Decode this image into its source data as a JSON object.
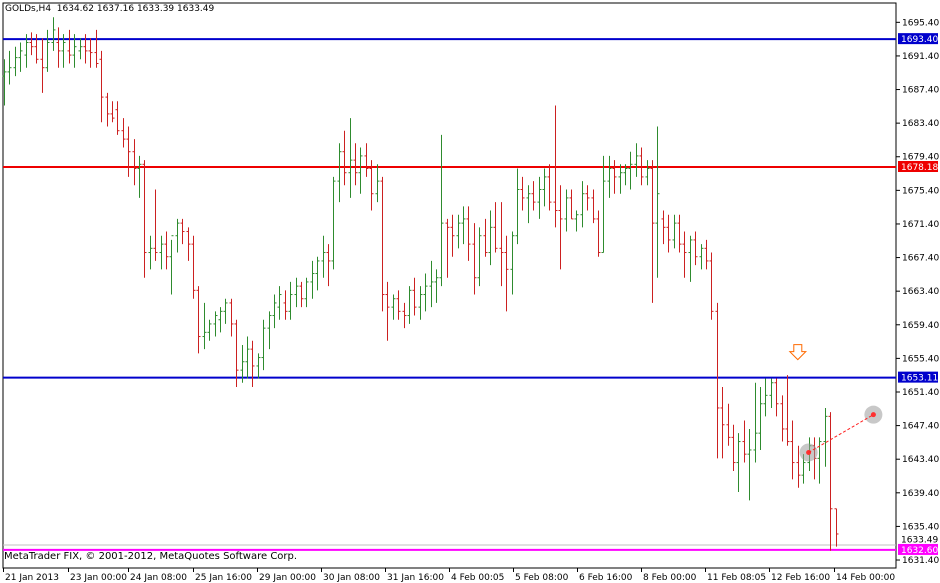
{
  "header": {
    "symbol": "GOLDs,H4",
    "ohlc": "1634.62 1637.16 1633.39 1633.49"
  },
  "footer": {
    "copyright": "MetaTrader FIX, © 2001-2012, MetaQuotes Software Corp."
  },
  "colors": {
    "bull": "#2e8b2e",
    "bear": "#cc2020",
    "blue_line": "#0000cc",
    "red_line": "#ee0000",
    "magenta_line": "#ff00ff",
    "arrow": "#ff6a00",
    "axis": "#000000",
    "grid_bg": "#ffffff"
  },
  "chart_data": {
    "type": "bar",
    "subtype": "ohlc",
    "ylim": [
      1630.45,
      1697.7
    ],
    "y_ticks": [
      "1695.40",
      "1691.40",
      "1687.40",
      "1683.40",
      "1679.40",
      "1675.40",
      "1671.40",
      "1667.40",
      "1663.40",
      "1659.40",
      "1655.40",
      "1651.40",
      "1647.40",
      "1643.40",
      "1639.40",
      "1635.40",
      "1631.40"
    ],
    "x_ticks": [
      "21 Jan 2013",
      "23 Jan 00:00",
      "24 Jan 08:00",
      "25 Jan 16:00",
      "29 Jan 00:00",
      "30 Jan 08:00",
      "31 Jan 16:00",
      "4 Feb 00:05",
      "5 Feb 08:00",
      "6 Feb 16:00",
      "8 Feb 00:00",
      "11 Feb 08:05",
      "12 Feb 16:00",
      "14 Feb 00:00"
    ],
    "horizontal_levels": [
      {
        "value": 1693.4,
        "label": "1693.40",
        "color": "#0000cc"
      },
      {
        "value": 1678.18,
        "label": "1678.18",
        "color": "#ee0000"
      },
      {
        "value": 1653.11,
        "label": "1653.11",
        "color": "#0000cc"
      },
      {
        "value": 1632.6,
        "label": "1632.60",
        "color": "#ff00ff"
      }
    ],
    "current_price": {
      "value": 1633.49,
      "label": "1633.49"
    },
    "bars": [
      [
        1689.0,
        1691.0,
        1685.5,
        1689.5
      ],
      [
        1689.5,
        1692.0,
        1688.0,
        1690.0
      ],
      [
        1690.0,
        1692.5,
        1689.0,
        1691.2
      ],
      [
        1691.2,
        1693.0,
        1689.5,
        1692.0
      ],
      [
        1691.5,
        1694.0,
        1690.0,
        1693.0
      ],
      [
        1693.0,
        1694.2,
        1691.5,
        1692.5
      ],
      [
        1692.5,
        1694.0,
        1690.5,
        1691.0
      ],
      [
        1691.0,
        1693.5,
        1687.0,
        1690.0
      ],
      [
        1690.0,
        1694.5,
        1689.5,
        1693.0
      ],
      [
        1693.0,
        1696.0,
        1692.0,
        1694.5
      ],
      [
        1693.0,
        1694.8,
        1690.0,
        1692.0
      ],
      [
        1692.0,
        1694.0,
        1690.0,
        1693.0
      ],
      [
        1692.0,
        1694.5,
        1690.5,
        1691.5
      ],
      [
        1691.5,
        1694.0,
        1690.0,
        1692.5
      ],
      [
        1692.0,
        1693.5,
        1691.0,
        1692.5
      ],
      [
        1692.5,
        1694.0,
        1690.5,
        1692.0
      ],
      [
        1692.0,
        1693.5,
        1690.0,
        1691.8
      ],
      [
        1691.8,
        1694.5,
        1690.0,
        1690.5
      ],
      [
        1691.0,
        1692.0,
        1683.5,
        1686.5
      ],
      [
        1686.5,
        1687.0,
        1683.0,
        1684.5
      ],
      [
        1684.5,
        1686.0,
        1683.5,
        1684.0
      ],
      [
        1685.0,
        1686.0,
        1682.0,
        1682.5
      ],
      [
        1682.5,
        1684.0,
        1680.5,
        1681.5
      ],
      [
        1681.5,
        1683.0,
        1677.0,
        1680.0
      ],
      [
        1680.0,
        1681.5,
        1676.0,
        1678.0
      ],
      [
        1678.0,
        1679.5,
        1674.5,
        1678.5
      ],
      [
        1678.5,
        1679.0,
        1665.0,
        1668.0
      ],
      [
        1668.0,
        1670.0,
        1666.0,
        1668.5
      ],
      [
        1668.5,
        1675.5,
        1667.0,
        1668.0
      ],
      [
        1668.0,
        1670.0,
        1666.0,
        1669.0
      ],
      [
        1669.0,
        1670.5,
        1666.0,
        1667.5
      ],
      [
        1667.5,
        1669.5,
        1663.0,
        1670.0
      ],
      [
        1670.0,
        1672.0,
        1668.0,
        1671.5
      ],
      [
        1671.5,
        1672.0,
        1669.0,
        1670.5
      ],
      [
        1670.5,
        1671.0,
        1667.0,
        1669.0
      ],
      [
        1669.0,
        1670.0,
        1662.5,
        1663.5
      ],
      [
        1663.5,
        1664.0,
        1656.0,
        1658.0
      ],
      [
        1658.0,
        1662.0,
        1656.5,
        1658.5
      ],
      [
        1658.5,
        1660.0,
        1657.5,
        1659.5
      ],
      [
        1659.5,
        1661.0,
        1658.0,
        1660.5
      ],
      [
        1660.0,
        1661.5,
        1658.5,
        1661.0
      ],
      [
        1661.0,
        1662.5,
        1659.5,
        1662.0
      ],
      [
        1662.0,
        1662.5,
        1658.0,
        1659.5
      ],
      [
        1659.5,
        1660.0,
        1652.0,
        1654.0
      ],
      [
        1654.0,
        1657.0,
        1652.5,
        1655.0
      ],
      [
        1655.0,
        1658.0,
        1653.0,
        1656.5
      ],
      [
        1656.5,
        1657.5,
        1652.0,
        1654.5
      ],
      [
        1654.5,
        1656.0,
        1653.0,
        1655.5
      ],
      [
        1655.5,
        1660.0,
        1654.0,
        1659.0
      ],
      [
        1659.0,
        1661.0,
        1656.5,
        1660.5
      ],
      [
        1660.5,
        1663.0,
        1659.0,
        1662.0
      ],
      [
        1661.5,
        1664.0,
        1660.0,
        1663.0
      ],
      [
        1662.0,
        1663.5,
        1660.0,
        1661.0
      ],
      [
        1661.0,
        1664.5,
        1660.0,
        1663.0
      ],
      [
        1663.0,
        1665.0,
        1661.5,
        1664.0
      ],
      [
        1664.0,
        1664.5,
        1661.5,
        1662.5
      ],
      [
        1662.5,
        1665.0,
        1661.5,
        1664.5
      ],
      [
        1664.5,
        1667.0,
        1662.5,
        1665.5
      ],
      [
        1665.5,
        1667.5,
        1663.5,
        1667.0
      ],
      [
        1667.0,
        1670.0,
        1665.0,
        1668.0
      ],
      [
        1668.0,
        1669.0,
        1664.0,
        1667.0
      ],
      [
        1667.0,
        1677.0,
        1666.0,
        1676.5
      ],
      [
        1676.5,
        1681.0,
        1674.0,
        1680.0
      ],
      [
        1680.0,
        1682.5,
        1676.0,
        1677.5
      ],
      [
        1677.5,
        1684.0,
        1674.5,
        1679.0
      ],
      [
        1679.0,
        1681.0,
        1676.0,
        1677.5
      ],
      [
        1677.5,
        1680.5,
        1675.0,
        1679.5
      ],
      [
        1679.5,
        1681.0,
        1677.0,
        1678.0
      ],
      [
        1678.0,
        1679.0,
        1673.0,
        1675.0
      ],
      [
        1675.0,
        1678.5,
        1674.0,
        1676.5
      ],
      [
        1676.5,
        1677.0,
        1661.0,
        1663.0
      ],
      [
        1663.0,
        1664.5,
        1657.5,
        1661.5
      ],
      [
        1661.5,
        1663.0,
        1660.0,
        1662.5
      ],
      [
        1662.5,
        1663.5,
        1660.0,
        1661.0
      ],
      [
        1661.0,
        1662.0,
        1659.0,
        1660.5
      ],
      [
        1660.5,
        1664.0,
        1659.5,
        1663.5
      ],
      [
        1663.5,
        1665.0,
        1660.5,
        1661.5
      ],
      [
        1661.5,
        1664.0,
        1660.0,
        1663.0
      ],
      [
        1663.0,
        1665.5,
        1661.0,
        1664.0
      ],
      [
        1664.0,
        1667.0,
        1661.5,
        1664.5
      ],
      [
        1664.5,
        1666.0,
        1662.0,
        1665.0
      ],
      [
        1665.0,
        1682.0,
        1664.0,
        1671.5
      ],
      [
        1671.5,
        1672.0,
        1665.0,
        1671.0
      ],
      [
        1671.0,
        1672.5,
        1667.5,
        1670.0
      ],
      [
        1670.0,
        1672.5,
        1668.5,
        1671.5
      ],
      [
        1671.5,
        1673.5,
        1669.0,
        1672.0
      ],
      [
        1672.0,
        1673.5,
        1667.0,
        1669.0
      ],
      [
        1669.0,
        1671.5,
        1663.0,
        1665.0
      ],
      [
        1665.0,
        1671.0,
        1664.0,
        1670.0
      ],
      [
        1670.0,
        1672.0,
        1667.5,
        1668.0
      ],
      [
        1668.0,
        1673.0,
        1666.5,
        1671.0
      ],
      [
        1671.0,
        1674.0,
        1668.0,
        1668.5
      ],
      [
        1668.5,
        1674.0,
        1664.0,
        1668.0
      ],
      [
        1668.0,
        1670.0,
        1661.0,
        1666.0
      ],
      [
        1666.0,
        1670.5,
        1663.0,
        1670.0
      ],
      [
        1670.0,
        1678.0,
        1669.0,
        1675.5
      ],
      [
        1675.5,
        1677.0,
        1673.0,
        1674.5
      ],
      [
        1674.5,
        1676.0,
        1671.5,
        1675.0
      ],
      [
        1675.0,
        1676.5,
        1673.0,
        1674.0
      ],
      [
        1674.0,
        1677.0,
        1672.0,
        1675.5
      ],
      [
        1675.5,
        1678.0,
        1673.5,
        1677.0
      ],
      [
        1677.0,
        1678.5,
        1673.0,
        1674.0
      ],
      [
        1674.0,
        1685.5,
        1671.0,
        1673.0
      ],
      [
        1673.0,
        1676.0,
        1666.0,
        1672.0
      ],
      [
        1672.0,
        1675.5,
        1670.5,
        1674.5
      ],
      [
        1674.5,
        1675.5,
        1672.0,
        1672.0
      ],
      [
        1672.0,
        1673.0,
        1670.5,
        1672.5
      ],
      [
        1672.5,
        1676.5,
        1671.0,
        1675.0
      ],
      [
        1675.0,
        1676.0,
        1673.0,
        1674.5
      ],
      [
        1674.5,
        1675.5,
        1671.5,
        1672.0
      ],
      [
        1672.0,
        1673.0,
        1667.5,
        1668.0
      ],
      [
        1668.0,
        1679.5,
        1668.0,
        1676.5
      ],
      [
        1676.5,
        1679.5,
        1674.5,
        1678.0
      ],
      [
        1678.0,
        1679.0,
        1675.0,
        1677.0
      ],
      [
        1677.0,
        1678.5,
        1675.0,
        1677.5
      ],
      [
        1677.5,
        1678.5,
        1676.0,
        1678.0
      ],
      [
        1678.0,
        1680.0,
        1675.5,
        1678.5
      ],
      [
        1678.5,
        1681.0,
        1677.0,
        1679.5
      ],
      [
        1679.5,
        1680.5,
        1676.0,
        1677.0
      ],
      [
        1677.0,
        1679.0,
        1676.0,
        1678.0
      ],
      [
        1678.0,
        1679.0,
        1662.0,
        1671.5
      ],
      [
        1671.5,
        1683.0,
        1665.0,
        1675.0
      ],
      [
        1672.0,
        1673.0,
        1669.0,
        1671.0
      ],
      [
        1671.0,
        1672.5,
        1668.0,
        1669.5
      ],
      [
        1669.5,
        1672.5,
        1668.5,
        1671.5
      ],
      [
        1671.5,
        1672.5,
        1668.0,
        1669.0
      ],
      [
        1669.0,
        1670.5,
        1665.0,
        1668.0
      ],
      [
        1668.0,
        1670.0,
        1664.5,
        1669.5
      ],
      [
        1669.5,
        1670.5,
        1666.5,
        1667.5
      ],
      [
        1667.5,
        1669.0,
        1666.0,
        1668.5
      ],
      [
        1668.5,
        1669.5,
        1666.0,
        1667.0
      ],
      [
        1667.0,
        1668.0,
        1660.0,
        1661.0
      ],
      [
        1661.0,
        1662.0,
        1643.5,
        1649.5
      ],
      [
        1649.5,
        1652.0,
        1643.5,
        1647.5
      ],
      [
        1647.5,
        1650.0,
        1645.0,
        1646.0
      ],
      [
        1646.0,
        1647.5,
        1642.0,
        1643.0
      ],
      [
        1643.0,
        1646.5,
        1639.5,
        1645.5
      ],
      [
        1645.5,
        1648.0,
        1643.0,
        1644.0
      ],
      [
        1644.0,
        1647.0,
        1638.5,
        1644.5
      ],
      [
        1644.5,
        1652.5,
        1643.0,
        1646.5
      ],
      [
        1646.5,
        1652.0,
        1644.5,
        1650.0
      ],
      [
        1650.0,
        1653.0,
        1648.5,
        1651.0
      ],
      [
        1651.0,
        1653.0,
        1649.5,
        1652.5
      ],
      [
        1652.5,
        1653.0,
        1648.5,
        1650.0
      ],
      [
        1650.0,
        1651.0,
        1645.5,
        1647.0
      ],
      [
        1647.0,
        1653.4,
        1645.0,
        1645.5
      ],
      [
        1645.5,
        1648.0,
        1641.0,
        1643.0
      ],
      [
        1643.0,
        1645.0,
        1640.0,
        1641.5
      ],
      [
        1641.5,
        1644.0,
        1640.5,
        1643.0
      ],
      [
        1643.0,
        1646.0,
        1642.0,
        1645.0
      ],
      [
        1645.0,
        1646.0,
        1641.0,
        1643.5
      ],
      [
        1643.5,
        1646.0,
        1640.5,
        1645.5
      ],
      [
        1645.5,
        1649.5,
        1642.5,
        1648.5
      ],
      [
        1648.5,
        1649.0,
        1632.5,
        1637.5
      ],
      [
        1637.5,
        1637.5,
        1633.0,
        1634.5
      ]
    ],
    "annotations": [
      {
        "type": "arrow-down",
        "price": 1656.2,
        "bar_index": 147
      },
      {
        "type": "circle",
        "price": 1644.2,
        "bar_index": 149
      },
      {
        "type": "circle",
        "price": 1648.7,
        "bar_index": 161
      },
      {
        "type": "dashed-line",
        "from": [
          149,
          1644.2
        ],
        "to": [
          161,
          1648.7
        ]
      }
    ]
  }
}
